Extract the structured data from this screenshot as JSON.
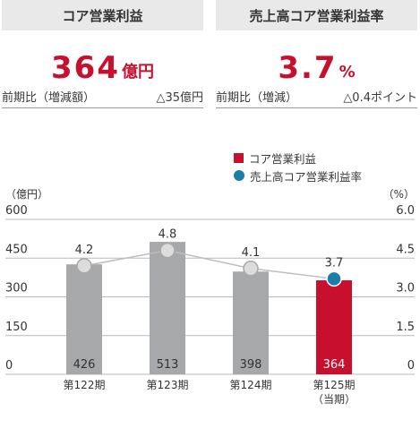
{
  "cards": [
    {
      "title": "コア営業利益",
      "value": "364",
      "unit": "億円",
      "compare_label": "前期比（増減額）",
      "compare_value": "△35億円"
    },
    {
      "title": "売上高コア営業利益率",
      "value": "3.7",
      "unit": "%",
      "compare_label": "前期比（増減）",
      "compare_value": "△0.4ポイント"
    }
  ],
  "chart_data": {
    "type": "bar",
    "categories": [
      "第122期",
      "第123期",
      "第124期",
      "第125期"
    ],
    "category_note": "（当期）",
    "series": [
      {
        "name": "コア営業利益",
        "values": [
          426,
          513,
          398,
          364
        ],
        "axis": "left",
        "colors": [
          "#a7a8aa",
          "#a7a8aa",
          "#a7a8aa",
          "#c8102e"
        ]
      },
      {
        "name": "売上高コア営業利益率",
        "values": [
          4.2,
          4.8,
          4.1,
          3.7
        ],
        "axis": "right",
        "line": true,
        "marker_colors": [
          "#dcdcdc",
          "#dcdcdc",
          "#dcdcdc",
          "#1a7fa6"
        ]
      }
    ],
    "ylabel_left": "（億円）",
    "ylabel_right": "（%）",
    "yticks_left": [
      "600",
      "450",
      "300",
      "150",
      "0"
    ],
    "yticks_right": [
      "6.0",
      "4.5",
      "3.0",
      "1.5",
      "0"
    ],
    "ylim_left": [
      0,
      600
    ],
    "ylim_right": [
      0,
      6
    ],
    "grid": true,
    "legend_position": "top-right"
  }
}
